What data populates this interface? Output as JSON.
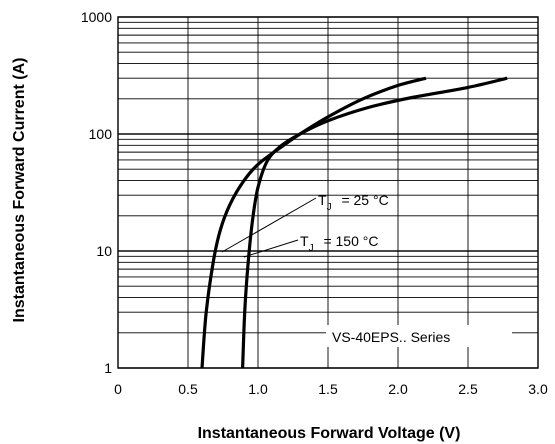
{
  "chart_data": {
    "type": "line",
    "title": "",
    "xlabel": "Instantaneous Forward Voltage (V)",
    "ylabel": "Instantaneous Forward Current (A)",
    "xlim": [
      0,
      3.0
    ],
    "ylim": [
      1,
      1000
    ],
    "yscale": "log",
    "grid": true,
    "x_ticks": [
      "0",
      "0.5",
      "1.0",
      "1.5",
      "2.0",
      "2.5",
      "3.0"
    ],
    "y_ticks": [
      "1",
      "10",
      "100",
      "1000"
    ],
    "annotations": {
      "series_25": {
        "prefix": "T",
        "sub": "J",
        "suffix": " = 25 °C"
      },
      "series_150": {
        "prefix": "T",
        "sub": "J",
        "suffix": " = 150 °C"
      },
      "series_box": "VS-40EPS.. Series"
    },
    "series": [
      {
        "name": "TJ = 25 °C",
        "x": [
          0.89,
          0.905,
          0.93,
          0.96,
          1.0,
          1.07,
          1.17,
          1.3,
          1.5,
          1.8,
          2.1,
          2.5,
          2.78
        ],
        "y": [
          1,
          3,
          8,
          18,
          35,
          60,
          80,
          100,
          130,
          170,
          205,
          250,
          300
        ]
      },
      {
        "name": "TJ = 150 °C",
        "x": [
          0.6,
          0.63,
          0.68,
          0.73,
          0.8,
          0.9,
          1.0,
          1.15,
          1.3,
          1.5,
          1.75,
          2.0,
          2.2
        ],
        "y": [
          1,
          3,
          8,
          15,
          25,
          40,
          55,
          75,
          100,
          140,
          200,
          260,
          300
        ]
      }
    ]
  }
}
